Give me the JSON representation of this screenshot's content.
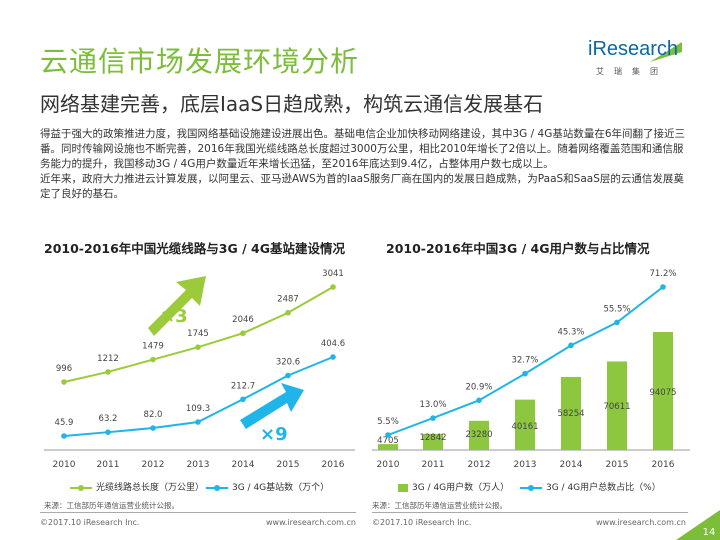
{
  "header": {
    "title": "云通信市场发展环境分析",
    "subtitle": "网络基建完善，底层IaaS日趋成熟，构筑云通信发展基石",
    "logo_word": "iResearch",
    "logo_cn": "艾瑞集团"
  },
  "body": {
    "paragraph1": "得益于强大的政策推进力度，我国网络基础设施建设进展出色。基础电信企业加快移动网络建设，其中3G / 4G基站数量在6年间翻了接近三番。同时传输网设施也不断完善，2016年我国光缆线路总长度超过3000万公里，相比2010年增长了2倍以上。随着网络覆盖范围和通信服务能力的提升，我国移动3G / 4G用户数量近年来增长迅猛，至2016年底达到9.4亿，占整体用户数七成以上。",
    "paragraph2": "近年来，政府大力推进云计算发展，以阿里云、亚马逊AWS为首的IaaS服务厂商在国内的发展日趋成熟，为PaaS和SaaS层的云通信发展奠定了良好的基石。"
  },
  "colors": {
    "green": "#9bcb3b",
    "cyan": "#1fb5e8",
    "bar": "#8dc63f",
    "title": "#7cbd3a"
  },
  "chart_data": [
    {
      "type": "line",
      "title": "2010-2016年中国光缆线路与3G / 4G基站建设情况",
      "x": [
        "2010",
        "2011",
        "2012",
        "2013",
        "2014",
        "2015",
        "2016"
      ],
      "series": [
        {
          "name": "光缆线路总长度（万公里）",
          "values": [
            996,
            1212,
            1479,
            1745,
            2046,
            2487,
            3041
          ],
          "labels": [
            "996",
            "1212",
            "1479",
            "1745",
            "2046",
            "2487",
            "3041"
          ]
        },
        {
          "name": "3G / 4G基站数（万个）",
          "values": [
            45.9,
            63.2,
            82.0,
            109.3,
            212.7,
            320.6,
            404.6
          ],
          "labels": [
            "45.9",
            "63.2",
            "82.0",
            "109.3",
            "212.7",
            "320.6",
            "404.6"
          ]
        }
      ],
      "annotations": [
        "×3",
        "×9"
      ],
      "grid": false,
      "legend": "bottom",
      "source": "来源：工信部历年通信运营业统计公报。"
    },
    {
      "type": "bar+line",
      "title": "2010-2016年中国3G / 4G用户数与占比情况",
      "x": [
        "2010",
        "2011",
        "2012",
        "2013",
        "2014",
        "2015",
        "2016"
      ],
      "series": [
        {
          "name": "3G / 4G用户数（万人）",
          "type": "bar",
          "values": [
            4705,
            12842,
            23280,
            40161,
            58254,
            70611,
            94075
          ],
          "labels": [
            "4705",
            "12842",
            "23280",
            "40161",
            "58254",
            "70611",
            "94075"
          ]
        },
        {
          "name": "3G / 4G用户总数占比（%）",
          "type": "line",
          "values": [
            5.5,
            13.0,
            20.9,
            32.7,
            45.3,
            55.5,
            71.2
          ],
          "labels": [
            "5.5%",
            "13.0%",
            "20.9%",
            "32.7%",
            "45.3%",
            "55.5%",
            "71.2%"
          ]
        }
      ],
      "grid": false,
      "legend": "bottom",
      "source": "来源：工信部历年通信运营业统计公报。"
    }
  ],
  "footer": {
    "copyright_left": "©2017.10 iResearch Inc.",
    "url_left": "www.iresearch.com.cn",
    "copyright_right": "©2017.10 iResearch Inc.",
    "url_right": "www.iresearch.com.cn",
    "page": "14"
  }
}
